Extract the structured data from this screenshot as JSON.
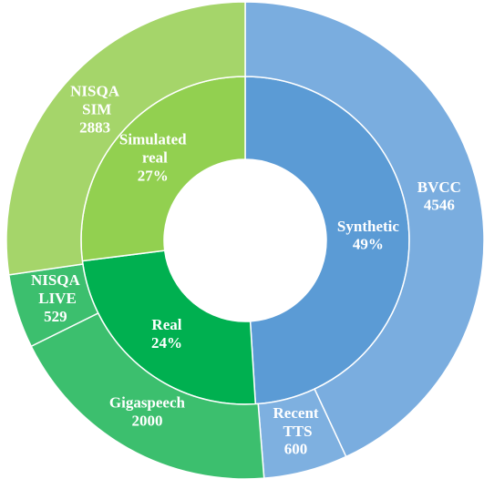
{
  "chart_data": {
    "type": "sunburst",
    "rings": [
      {
        "categories": [
          "Synthetic",
          "Real",
          "Simulated real"
        ],
        "values": [
          49,
          24,
          27
        ],
        "value_labels": [
          "49%",
          "24%",
          "27%"
        ],
        "colors": [
          "#5b9bd5",
          "#00b050",
          "#92d050"
        ]
      },
      {
        "categories": [
          "BVCC",
          "Recent TTS",
          "Gigaspeech",
          "NISQA LIVE",
          "NISQA SIM"
        ],
        "values": [
          4546,
          600,
          2000,
          529,
          2883
        ],
        "colors": [
          "#7aaddf",
          "#7eb0e0",
          "#3cbf6e",
          "#3cbf6e",
          "#a5d56a"
        ]
      }
    ]
  }
}
